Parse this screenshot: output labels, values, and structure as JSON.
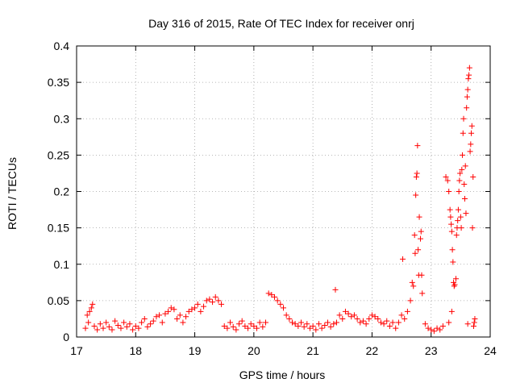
{
  "chart_data": {
    "type": "scatter",
    "title": "Day 316 of 2015, Rate Of TEC Index for receiver onrj",
    "xlabel": "GPS time / hours",
    "ylabel": "ROTI / TECUs",
    "xlim": [
      17,
      24
    ],
    "ylim": [
      0,
      0.4
    ],
    "x_ticks": [
      17,
      18,
      19,
      20,
      21,
      22,
      23,
      24
    ],
    "x_tick_labels": [
      "17",
      "18",
      "19",
      "20",
      "21",
      "22",
      "23",
      "24"
    ],
    "y_ticks": [
      0,
      0.05,
      0.1,
      0.15,
      0.2,
      0.25,
      0.3,
      0.35,
      0.4
    ],
    "y_tick_labels": [
      "0",
      "0.05",
      "0.1",
      "0.15",
      "0.2",
      "0.25",
      "0.3",
      "0.35",
      "0.4"
    ],
    "grid": true,
    "marker": "+",
    "marker_color": "#ff0000",
    "series": [
      {
        "name": "ROTI",
        "points": [
          [
            17.15,
            0.012
          ],
          [
            17.18,
            0.03
          ],
          [
            17.2,
            0.02
          ],
          [
            17.22,
            0.035
          ],
          [
            17.25,
            0.04
          ],
          [
            17.27,
            0.045
          ],
          [
            17.3,
            0.015
          ],
          [
            17.35,
            0.01
          ],
          [
            17.4,
            0.018
          ],
          [
            17.45,
            0.012
          ],
          [
            17.5,
            0.02
          ],
          [
            17.55,
            0.014
          ],
          [
            17.6,
            0.01
          ],
          [
            17.65,
            0.022
          ],
          [
            17.7,
            0.016
          ],
          [
            17.75,
            0.012
          ],
          [
            17.8,
            0.02
          ],
          [
            17.85,
            0.014
          ],
          [
            17.9,
            0.018
          ],
          [
            17.95,
            0.01
          ],
          [
            18.0,
            0.015
          ],
          [
            18.05,
            0.012
          ],
          [
            18.1,
            0.02
          ],
          [
            18.15,
            0.025
          ],
          [
            18.2,
            0.014
          ],
          [
            18.25,
            0.018
          ],
          [
            18.3,
            0.022
          ],
          [
            18.35,
            0.028
          ],
          [
            18.4,
            0.03
          ],
          [
            18.45,
            0.02
          ],
          [
            18.5,
            0.032
          ],
          [
            18.55,
            0.035
          ],
          [
            18.6,
            0.04
          ],
          [
            18.65,
            0.038
          ],
          [
            18.7,
            0.025
          ],
          [
            18.75,
            0.03
          ],
          [
            18.8,
            0.02
          ],
          [
            18.85,
            0.028
          ],
          [
            18.9,
            0.035
          ],
          [
            18.95,
            0.038
          ],
          [
            19.0,
            0.04
          ],
          [
            19.05,
            0.045
          ],
          [
            19.1,
            0.035
          ],
          [
            19.15,
            0.042
          ],
          [
            19.2,
            0.05
          ],
          [
            19.25,
            0.052
          ],
          [
            19.3,
            0.048
          ],
          [
            19.35,
            0.055
          ],
          [
            19.4,
            0.05
          ],
          [
            19.45,
            0.045
          ],
          [
            19.5,
            0.015
          ],
          [
            19.55,
            0.012
          ],
          [
            19.6,
            0.02
          ],
          [
            19.65,
            0.014
          ],
          [
            19.7,
            0.01
          ],
          [
            19.75,
            0.018
          ],
          [
            19.8,
            0.022
          ],
          [
            19.85,
            0.015
          ],
          [
            19.9,
            0.012
          ],
          [
            19.95,
            0.018
          ],
          [
            20.0,
            0.015
          ],
          [
            20.05,
            0.012
          ],
          [
            20.1,
            0.02
          ],
          [
            20.15,
            0.014
          ],
          [
            20.2,
            0.02
          ],
          [
            20.25,
            0.06
          ],
          [
            20.3,
            0.058
          ],
          [
            20.35,
            0.055
          ],
          [
            20.4,
            0.05
          ],
          [
            20.45,
            0.045
          ],
          [
            20.5,
            0.04
          ],
          [
            20.55,
            0.03
          ],
          [
            20.6,
            0.025
          ],
          [
            20.65,
            0.02
          ],
          [
            20.7,
            0.018
          ],
          [
            20.75,
            0.015
          ],
          [
            20.8,
            0.02
          ],
          [
            20.85,
            0.014
          ],
          [
            20.9,
            0.018
          ],
          [
            20.95,
            0.012
          ],
          [
            21.0,
            0.015
          ],
          [
            21.05,
            0.01
          ],
          [
            21.1,
            0.018
          ],
          [
            21.15,
            0.012
          ],
          [
            21.2,
            0.016
          ],
          [
            21.25,
            0.02
          ],
          [
            21.3,
            0.014
          ],
          [
            21.35,
            0.018
          ],
          [
            21.38,
            0.065
          ],
          [
            21.4,
            0.02
          ],
          [
            21.45,
            0.03
          ],
          [
            21.5,
            0.025
          ],
          [
            21.55,
            0.035
          ],
          [
            21.6,
            0.032
          ],
          [
            21.65,
            0.028
          ],
          [
            21.7,
            0.03
          ],
          [
            21.75,
            0.025
          ],
          [
            21.8,
            0.02
          ],
          [
            21.85,
            0.022
          ],
          [
            21.9,
            0.018
          ],
          [
            21.95,
            0.025
          ],
          [
            22.0,
            0.03
          ],
          [
            22.05,
            0.028
          ],
          [
            22.1,
            0.025
          ],
          [
            22.15,
            0.02
          ],
          [
            22.2,
            0.018
          ],
          [
            22.25,
            0.022
          ],
          [
            22.3,
            0.015
          ],
          [
            22.35,
            0.02
          ],
          [
            22.4,
            0.012
          ],
          [
            22.45,
            0.02
          ],
          [
            22.5,
            0.03
          ],
          [
            22.52,
            0.107
          ],
          [
            22.55,
            0.025
          ],
          [
            22.6,
            0.035
          ],
          [
            22.65,
            0.05
          ],
          [
            22.68,
            0.075
          ],
          [
            22.7,
            0.07
          ],
          [
            22.72,
            0.14
          ],
          [
            22.73,
            0.115
          ],
          [
            22.74,
            0.195
          ],
          [
            22.75,
            0.22
          ],
          [
            22.76,
            0.225
          ],
          [
            22.77,
            0.263
          ],
          [
            22.78,
            0.12
          ],
          [
            22.79,
            0.085
          ],
          [
            22.8,
            0.165
          ],
          [
            22.82,
            0.135
          ],
          [
            22.83,
            0.145
          ],
          [
            22.84,
            0.085
          ],
          [
            22.85,
            0.06
          ],
          [
            22.9,
            0.018
          ],
          [
            22.95,
            0.012
          ],
          [
            23.0,
            0.01
          ],
          [
            23.05,
            0.008
          ],
          [
            23.1,
            0.012
          ],
          [
            23.15,
            0.01
          ],
          [
            23.2,
            0.015
          ],
          [
            23.25,
            0.22
          ],
          [
            23.28,
            0.215
          ],
          [
            23.3,
            0.2
          ],
          [
            23.32,
            0.175
          ],
          [
            23.33,
            0.165
          ],
          [
            23.34,
            0.155
          ],
          [
            23.35,
            0.145
          ],
          [
            23.36,
            0.12
          ],
          [
            23.37,
            0.103
          ],
          [
            23.38,
            0.075
          ],
          [
            23.39,
            0.07
          ],
          [
            23.4,
            0.072
          ],
          [
            23.42,
            0.08
          ],
          [
            23.43,
            0.14
          ],
          [
            23.44,
            0.15
          ],
          [
            23.45,
            0.16
          ],
          [
            23.46,
            0.175
          ],
          [
            23.47,
            0.2
          ],
          [
            23.48,
            0.215
          ],
          [
            23.49,
            0.225
          ],
          [
            23.5,
            0.165
          ],
          [
            23.51,
            0.15
          ],
          [
            23.52,
            0.23
          ],
          [
            23.53,
            0.25
          ],
          [
            23.54,
            0.28
          ],
          [
            23.55,
            0.3
          ],
          [
            23.56,
            0.21
          ],
          [
            23.57,
            0.19
          ],
          [
            23.58,
            0.235
          ],
          [
            23.59,
            0.17
          ],
          [
            23.6,
            0.315
          ],
          [
            23.61,
            0.33
          ],
          [
            23.62,
            0.34
          ],
          [
            23.63,
            0.355
          ],
          [
            23.64,
            0.36
          ],
          [
            23.65,
            0.37
          ],
          [
            23.66,
            0.255
          ],
          [
            23.67,
            0.265
          ],
          [
            23.68,
            0.28
          ],
          [
            23.69,
            0.29
          ],
          [
            23.7,
            0.15
          ],
          [
            23.71,
            0.22
          ],
          [
            23.72,
            0.015
          ],
          [
            23.73,
            0.02
          ],
          [
            23.74,
            0.025
          ],
          [
            23.3,
            0.02
          ],
          [
            23.35,
            0.035
          ],
          [
            23.62,
            0.018
          ]
        ]
      }
    ]
  }
}
